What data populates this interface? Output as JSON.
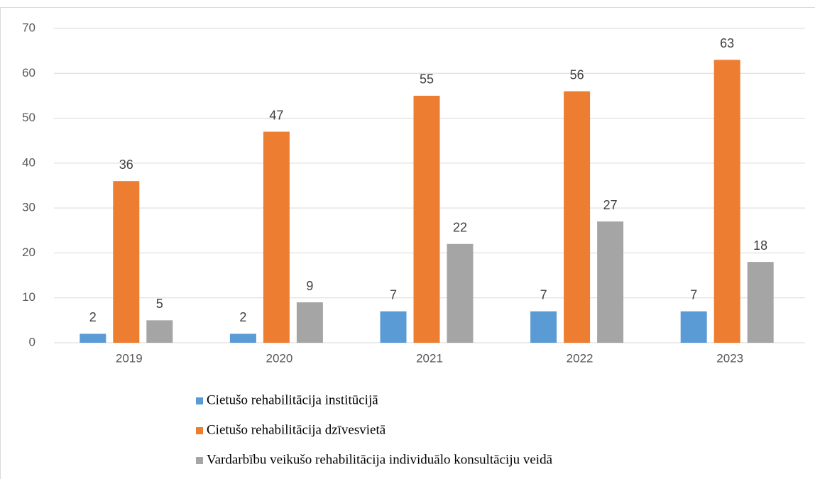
{
  "chart_data": {
    "type": "bar",
    "categories": [
      "2019",
      "2020",
      "2021",
      "2022",
      "2023"
    ],
    "series": [
      {
        "name": "Cietušo rehabilitācija institūcijā",
        "color": "#5b9bd5",
        "values": [
          2,
          2,
          7,
          7,
          7
        ]
      },
      {
        "name": "Cietušo rehabilitācija dzīvesvietā",
        "color": "#ed7d31",
        "values": [
          36,
          47,
          55,
          56,
          63
        ]
      },
      {
        "name": "Vardarbību veikušo rehabilitācija individuālo konsultāciju veidā",
        "color": "#a5a5a5",
        "values": [
          5,
          9,
          22,
          27,
          18
        ]
      }
    ],
    "ylim": [
      0,
      70
    ],
    "yticks": [
      0,
      10,
      20,
      30,
      40,
      50,
      60,
      70
    ],
    "grid": true,
    "legend": "bottom",
    "data_labels": true
  }
}
